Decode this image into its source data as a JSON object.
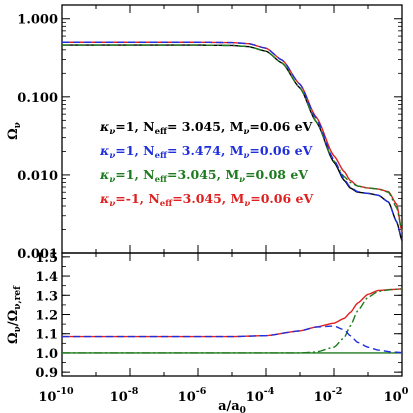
{
  "chart_data": [
    {
      "panel": "top",
      "type": "line",
      "ylabel": "Ω_ν",
      "yscale": "log",
      "xscale": "log",
      "xlim": [
        1e-10,
        1
      ],
      "ylim": [
        0.001,
        1.5
      ],
      "yticks": [
        {
          "value": 1,
          "label": "1.000"
        },
        {
          "value": 0.1,
          "label": "0.100"
        },
        {
          "value": 0.01,
          "label": "0.010"
        },
        {
          "value": 0.001,
          "label": "0.001"
        }
      ],
      "legend": [
        {
          "kappa": "κ",
          "kappa_sub": "ν",
          "kappa_val": "=1, ",
          "neff": "N",
          "neff_sub": "eff",
          "neff_val": "= 3.045, ",
          "mnu": "M",
          "mnu_sub": "ν",
          "mnu_val": "=0.06 eV",
          "color": "#000000"
        },
        {
          "kappa": "κ",
          "kappa_sub": "ν",
          "kappa_val": "=1, ",
          "neff": "N",
          "neff_sub": "eff",
          "neff_val": "= 3.474, ",
          "mnu": "M",
          "mnu_sub": "ν",
          "mnu_val": "=0.06 eV",
          "color": "#1f2fdc"
        },
        {
          "kappa": "κ",
          "kappa_sub": "ν",
          "kappa_val": "=1, ",
          "neff": "N",
          "neff_sub": "eff",
          "neff_val": "=3.045, ",
          "mnu": "M",
          "mnu_sub": "ν",
          "mnu_val": "=0.08 eV",
          "color": "#1e7a1e"
        },
        {
          "kappa": "κ",
          "kappa_sub": "ν",
          "kappa_val": "=-1, ",
          "neff": "N",
          "neff_sub": "eff",
          "neff_val": "=3.045, ",
          "mnu": "M",
          "mnu_sub": "ν",
          "mnu_val": "=0.06 eV",
          "color": "#e02020"
        }
      ],
      "series": [
        {
          "color": "#000000",
          "dash": "solid",
          "x": [
            1e-10,
            1e-06,
            1e-05,
            3e-05,
            0.0001,
            0.0003,
            0.001,
            0.003,
            0.01,
            0.02,
            0.03,
            0.05,
            0.1,
            0.2,
            0.4,
            0.7,
            1.0
          ],
          "y": [
            0.46,
            0.46,
            0.455,
            0.44,
            0.385,
            0.27,
            0.13,
            0.048,
            0.0145,
            0.0085,
            0.0068,
            0.006,
            0.0058,
            0.0055,
            0.0045,
            0.0025,
            0.00145
          ]
        },
        {
          "color": "#e02020",
          "dash": "solid",
          "x": [
            1e-10,
            1e-06,
            1e-05,
            3e-05,
            0.0001,
            0.0003,
            0.001,
            0.003,
            0.01,
            0.02,
            0.03,
            0.05,
            0.1,
            0.2,
            0.4,
            0.7,
            1.0
          ],
          "y": [
            0.5,
            0.5,
            0.495,
            0.48,
            0.42,
            0.295,
            0.145,
            0.055,
            0.0175,
            0.011,
            0.0085,
            0.0072,
            0.0068,
            0.0066,
            0.0061,
            0.0042,
            0.00185
          ]
        },
        {
          "color": "#1e7a1e",
          "dash": "dashdot",
          "x": [
            1e-10,
            1e-06,
            1e-05,
            3e-05,
            0.0001,
            0.0003,
            0.001,
            0.003,
            0.01,
            0.02,
            0.03,
            0.05,
            0.1,
            0.2,
            0.4,
            0.7,
            1.0
          ],
          "y": [
            0.46,
            0.46,
            0.455,
            0.44,
            0.385,
            0.27,
            0.13,
            0.048,
            0.015,
            0.0095,
            0.008,
            0.0072,
            0.0068,
            0.0066,
            0.006,
            0.0038,
            0.0019
          ]
        },
        {
          "color": "#1f2fdc",
          "dash": "dashed",
          "x": [
            1e-10,
            1e-06,
            1e-05,
            3e-05,
            0.0001,
            0.0003,
            0.001,
            0.003,
            0.01,
            0.02,
            0.03,
            0.05,
            0.1,
            0.2,
            0.4,
            0.7,
            1.0
          ],
          "y": [
            0.5,
            0.5,
            0.495,
            0.48,
            0.42,
            0.295,
            0.145,
            0.053,
            0.0155,
            0.0088,
            0.007,
            0.0061,
            0.0058,
            0.0055,
            0.0045,
            0.0025,
            0.0015
          ]
        }
      ]
    },
    {
      "panel": "bottom",
      "type": "line",
      "xlabel": "a/a₀",
      "ylabel": "Ω_ν/Ω_ν,ref",
      "xscale": "log",
      "xlim": [
        1e-10,
        1
      ],
      "ylim": [
        0.88,
        1.52
      ],
      "yticks": [
        {
          "value": 0.9,
          "label": "0.9"
        },
        {
          "value": 1.0,
          "label": "1.0"
        },
        {
          "value": 1.1,
          "label": "1.1"
        },
        {
          "value": 1.2,
          "label": "1.2"
        },
        {
          "value": 1.3,
          "label": "1.3"
        },
        {
          "value": 1.4,
          "label": "1.4"
        },
        {
          "value": 1.5,
          "label": "1.5"
        }
      ],
      "xticks": [
        {
          "value": 1e-10,
          "base": "10",
          "exp": "-10"
        },
        {
          "value": 1e-08,
          "base": "10",
          "exp": "-8"
        },
        {
          "value": 1e-06,
          "base": "10",
          "exp": "-6"
        },
        {
          "value": 0.0001,
          "base": "10",
          "exp": "-4"
        },
        {
          "value": 0.01,
          "base": "10",
          "exp": "-2"
        },
        {
          "value": 1,
          "base": "10",
          "exp": "0"
        }
      ],
      "series": [
        {
          "color": "#1e7a1e",
          "dash": "solid",
          "x": [
            1e-10,
            1.0
          ],
          "y": [
            1.0,
            1.0
          ]
        },
        {
          "color": "#e02020",
          "dash": "solid",
          "x": [
            1e-10,
            1e-05,
            0.0001,
            0.001,
            0.003,
            0.01,
            0.02,
            0.03,
            0.05,
            0.1,
            0.2,
            0.5,
            1.0
          ],
          "y": [
            1.085,
            1.085,
            1.09,
            1.115,
            1.135,
            1.155,
            1.18,
            1.21,
            1.26,
            1.305,
            1.325,
            1.33,
            1.333
          ]
        },
        {
          "color": "#1e7a1e",
          "dash": "dashdot",
          "x": [
            1e-10,
            0.0001,
            0.001,
            0.003,
            0.01,
            0.02,
            0.03,
            0.05,
            0.1,
            0.2,
            0.5,
            1.0
          ],
          "y": [
            1.0,
            1.0,
            1.0,
            1.005,
            1.03,
            1.08,
            1.14,
            1.22,
            1.29,
            1.32,
            1.33,
            1.333
          ]
        },
        {
          "color": "#1f2fdc",
          "dash": "dashed",
          "x": [
            1e-10,
            1e-05,
            0.0001,
            0.001,
            0.003,
            0.01,
            0.02,
            0.03,
            0.05,
            0.1,
            0.2,
            0.5,
            1.0
          ],
          "y": [
            1.085,
            1.085,
            1.09,
            1.115,
            1.135,
            1.14,
            1.12,
            1.09,
            1.055,
            1.03,
            1.015,
            1.005,
            1.002
          ]
        }
      ]
    }
  ]
}
